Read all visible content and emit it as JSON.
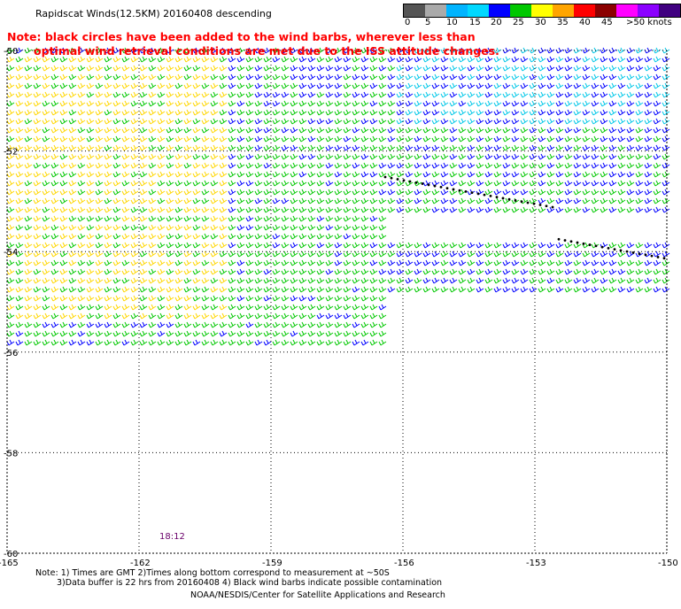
{
  "title": "Rapidscat Winds(12.5KM) 20160408 descending",
  "note_line1": "Note: black circles have been added to the wind barbs, wherever less than",
  "note_line2": "optimal wind retrieval conditions are met due to the ISS attitude changes.",
  "legend": {
    "labels": [
      "0",
      "5",
      "10",
      "15",
      "20",
      "25",
      "30",
      "35",
      "40",
      "45",
      ">50 knots"
    ],
    "colors": [
      "#555555",
      "#aaaaaa",
      "#00b4ff",
      "#00d8ff",
      "#0000ff",
      "#00c800",
      "#ffff00",
      "#ffa500",
      "#ff0000",
      "#8b0000",
      "#ff00ff",
      "#8b00ff",
      "#400080"
    ]
  },
  "axes": {
    "lon_labels": [
      "-165",
      "-162",
      "-159",
      "-156",
      "-153",
      "-150"
    ],
    "lat_labels": [
      "-50",
      "-52",
      "-54",
      "-56",
      "-58",
      "-60"
    ]
  },
  "time_label": "18:12",
  "footer": {
    "line1": "Note: 1) Times are GMT 2)Times along bottom correspond to measurement at ~50S",
    "line2": "3)Data buffer is 22 hrs from 20160408 4) Black wind barbs indicate possible contamination",
    "line3": "NOAA/NESDIS/Center for Satellite Applications and Research"
  },
  "map": {
    "lon_range": [
      -165,
      -150
    ],
    "lat_range": [
      -60,
      -50
    ],
    "grid": "dotted"
  }
}
